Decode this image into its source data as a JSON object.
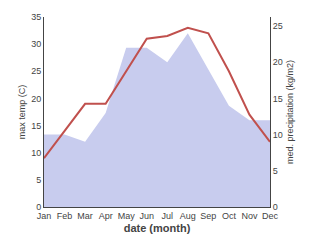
{
  "chart_data": {
    "type": "line",
    "categories": [
      "Jan",
      "Feb",
      "Mar",
      "Apr",
      "May",
      "Jun",
      "Jul",
      "Aug",
      "Sep",
      "Oct",
      "Nov",
      "Dec"
    ],
    "series": [
      {
        "type": "area",
        "axis": "y2",
        "color": "#c8ccee",
        "values": [
          10,
          10,
          9,
          13,
          22,
          22,
          20,
          24,
          19,
          14,
          12,
          12
        ]
      },
      {
        "type": "line",
        "color": "#c0504d",
        "values": [
          9,
          14,
          19,
          19,
          25,
          31,
          31.5,
          33,
          32,
          25,
          17,
          12
        ]
      }
    ],
    "xlabel": "date (month)",
    "ylabel": "max temp (C)",
    "y2label": "med. precipitation (kg/m2)",
    "ylim": [
      0,
      35
    ],
    "yticks": [
      0,
      5,
      10,
      15,
      20,
      25,
      30,
      35
    ],
    "y2lim": [
      0,
      26.25
    ],
    "y2ticks": [
      0,
      5,
      10,
      15,
      20,
      25
    ],
    "grid": false
  }
}
